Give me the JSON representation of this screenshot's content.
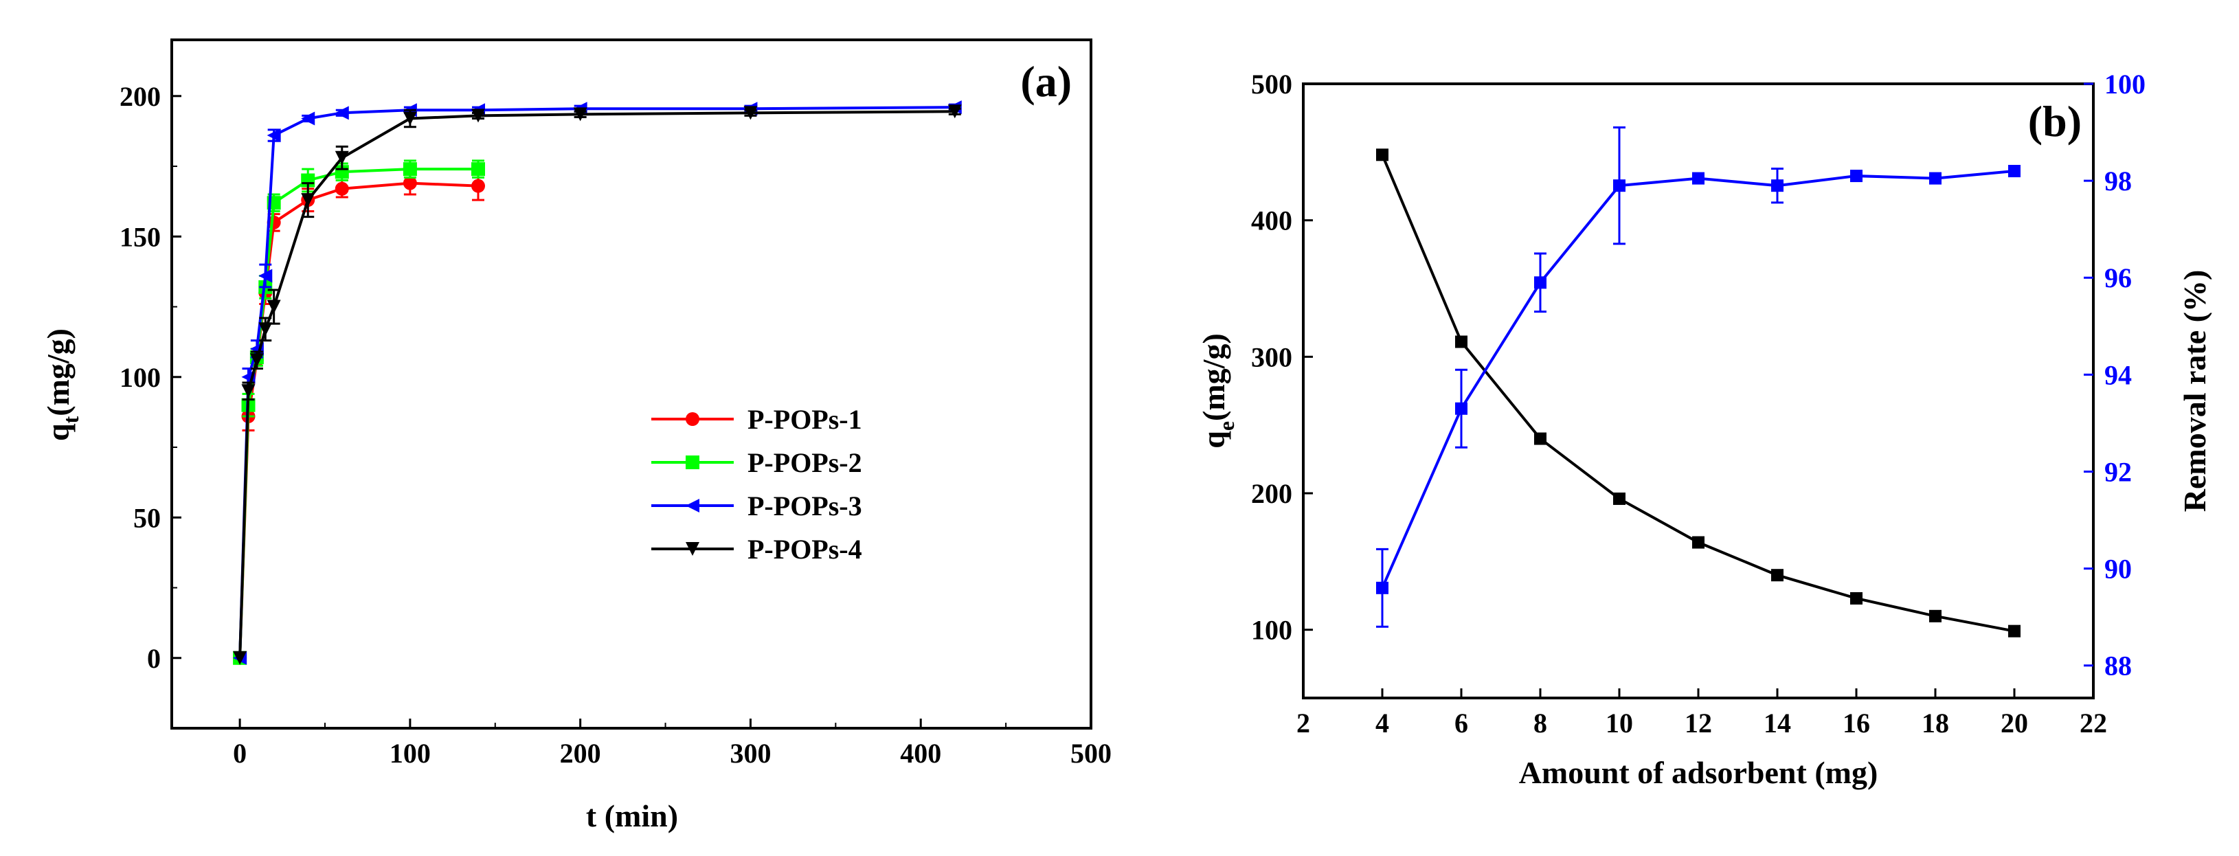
{
  "chart_data": [
    {
      "panel": "(a)",
      "type": "line",
      "xlabel": "t (min)",
      "ylabel_main": "q",
      "ylabel_sub": "t",
      "ylabel_unit": "(mg/g)",
      "xlim": [
        -40,
        500
      ],
      "ylim": [
        -25,
        220
      ],
      "xticks": [
        0,
        100,
        200,
        300,
        400,
        500
      ],
      "yticks": [
        0,
        50,
        100,
        150,
        200
      ],
      "grid": false,
      "legend_position": "center-right",
      "series": [
        {
          "name": "P-POPs-1",
          "color": "#ff0000",
          "marker": "circle",
          "x": [
            0,
            5,
            10,
            15,
            20,
            40,
            60,
            100,
            140
          ],
          "y": [
            0,
            86,
            106,
            130,
            155,
            163,
            167,
            169,
            168
          ],
          "err": [
            0,
            5,
            3,
            4,
            3,
            4,
            3,
            4,
            5
          ]
        },
        {
          "name": "P-POPs-2",
          "color": "#00ff00",
          "marker": "square",
          "x": [
            0,
            5,
            10,
            15,
            20,
            40,
            60,
            100,
            140
          ],
          "y": [
            0,
            90,
            107,
            132,
            162,
            170,
            173,
            174,
            174
          ],
          "err": [
            0,
            4,
            3,
            4,
            3,
            4,
            3,
            3,
            3
          ]
        },
        {
          "name": "P-POPs-3",
          "color": "#0000ff",
          "marker": "triangle-left",
          "x": [
            0,
            5,
            10,
            15,
            20,
            40,
            60,
            100,
            140,
            200,
            300,
            420
          ],
          "y": [
            0,
            100,
            110,
            136,
            186,
            192,
            194,
            195,
            195,
            195.5,
            195.5,
            196
          ],
          "err": [
            0,
            3,
            3,
            4,
            2,
            1,
            1,
            1,
            1,
            1,
            1,
            1
          ]
        },
        {
          "name": "P-POPs-4",
          "color": "#000000",
          "marker": "triangle-down",
          "x": [
            0,
            5,
            10,
            15,
            20,
            40,
            60,
            100,
            140,
            200,
            300,
            420
          ],
          "y": [
            0,
            95,
            106,
            117,
            125,
            163,
            178,
            192,
            193,
            193.5,
            194,
            194.5
          ],
          "err": [
            0,
            3,
            3,
            4,
            6,
            6,
            4,
            3,
            1,
            1,
            1,
            1
          ]
        }
      ]
    },
    {
      "panel": "(b)",
      "type": "line",
      "xlabel": "Amount of adsorbent (mg)",
      "ylabel_left_main": "q",
      "ylabel_left_sub": "e",
      "ylabel_left_unit": "(mg/g)",
      "ylabel_right": "Removal rate (%)",
      "xlim": [
        2,
        22
      ],
      "ylim_left": [
        50,
        500
      ],
      "ylim_right": [
        87.33,
        100
      ],
      "xticks": [
        2,
        4,
        6,
        8,
        10,
        12,
        14,
        16,
        18,
        20,
        22
      ],
      "yticks_left": [
        100,
        200,
        300,
        400,
        500
      ],
      "yticks_right": [
        88,
        90,
        92,
        94,
        96,
        98,
        100
      ],
      "grid": false,
      "series": [
        {
          "name": "qe",
          "axis": "left",
          "color": "#000000",
          "marker": "square",
          "x": [
            4,
            6,
            8,
            10,
            12,
            14,
            16,
            18,
            20
          ],
          "y": [
            448,
            311,
            240,
            196,
            164,
            140,
            123,
            110,
            99
          ]
        },
        {
          "name": "Removal rate",
          "axis": "right",
          "color": "#0000ff",
          "marker": "square",
          "x": [
            4,
            6,
            8,
            10,
            12,
            14,
            16,
            18,
            20
          ],
          "y": [
            89.6,
            93.3,
            95.9,
            97.9,
            98.05,
            97.9,
            98.1,
            98.05,
            98.2
          ],
          "err": [
            0.8,
            0.8,
            0.6,
            1.2,
            0.1,
            0.35,
            0.1,
            0.05,
            0.05
          ]
        }
      ]
    }
  ]
}
